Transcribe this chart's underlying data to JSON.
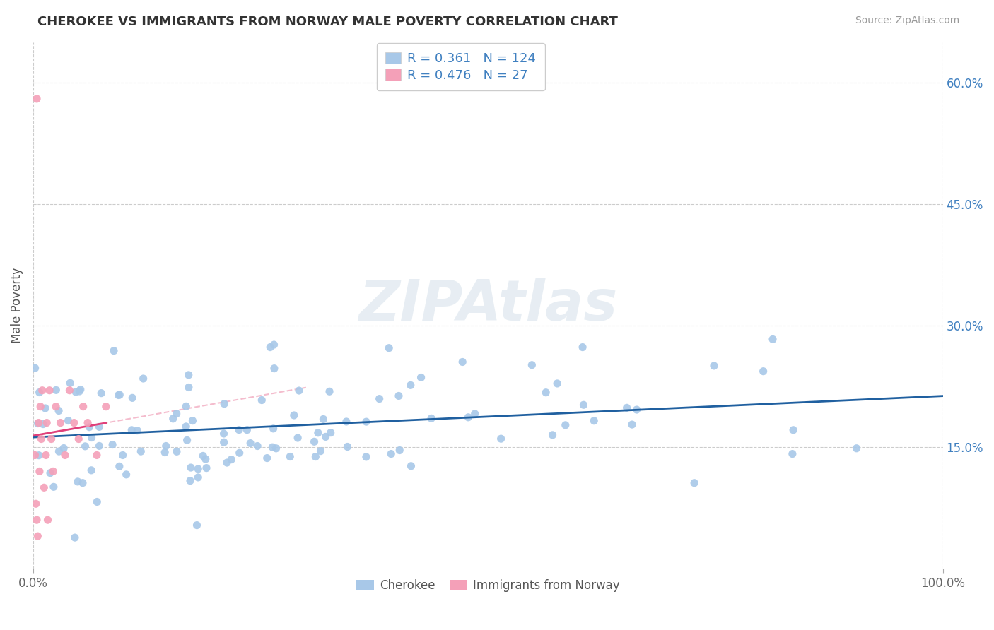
{
  "title": "CHEROKEE VS IMMIGRANTS FROM NORWAY MALE POVERTY CORRELATION CHART",
  "source": "Source: ZipAtlas.com",
  "ylabel": "Male Poverty",
  "watermark": "ZIPAtlas",
  "cherokee_color": "#a8c8e8",
  "norway_color": "#f4a0b8",
  "cherokee_line_color": "#2060a0",
  "norway_line_color": "#e0407a",
  "norway_dash_color": "#f0a0b8",
  "cherokee_R": 0.361,
  "cherokee_N": 124,
  "norway_R": 0.476,
  "norway_N": 27,
  "xlim": [
    0,
    100
  ],
  "ylim": [
    0,
    65
  ],
  "yticks": [
    0,
    15,
    30,
    45,
    60
  ],
  "ytick_labels": [
    "",
    "15.0%",
    "30.0%",
    "45.0%",
    "60.0%"
  ],
  "xtick_labels": [
    "0.0%",
    "100.0%"
  ]
}
